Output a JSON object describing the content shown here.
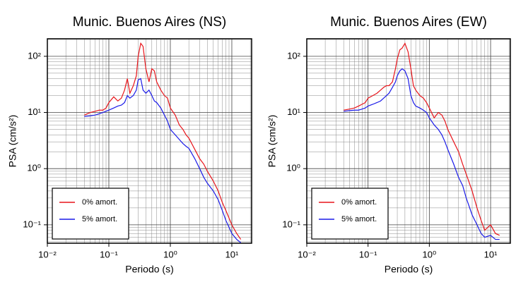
{
  "chart_data": [
    {
      "type": "line",
      "title": "Munic. Buenos Aires (NS)",
      "x_label": "Periodo (s)",
      "y_label": "PSA (cm/s²)",
      "x": [
        0.04,
        0.05,
        0.06,
        0.07,
        0.08,
        0.09,
        0.1,
        0.12,
        0.14,
        0.16,
        0.18,
        0.2,
        0.22,
        0.25,
        0.28,
        0.3,
        0.33,
        0.36,
        0.4,
        0.45,
        0.5,
        0.55,
        0.6,
        0.7,
        0.8,
        0.9,
        1.0,
        1.2,
        1.4,
        1.6,
        1.8,
        2.0,
        2.5,
        3.0,
        3.5,
        4.0,
        5.0,
        6.0,
        7.0,
        8.0,
        10,
        12,
        14
      ],
      "series": [
        {
          "name": "0% amort.",
          "color": "#e8141a",
          "values": [
            9,
            10,
            10.5,
            11,
            11,
            12,
            15,
            19,
            16,
            18,
            25,
            40,
            22,
            30,
            45,
            100,
            170,
            150,
            60,
            35,
            60,
            55,
            35,
            25,
            20,
            18,
            12,
            9,
            6,
            5,
            4,
            3.5,
            2.2,
            1.5,
            1.2,
            0.9,
            0.6,
            0.4,
            0.25,
            0.18,
            0.1,
            0.07,
            0.055
          ]
        },
        {
          "name": "5% amort.",
          "color": "#1a1ae8",
          "values": [
            8.5,
            8.7,
            9,
            9.5,
            10,
            10.5,
            11,
            12,
            13,
            13.5,
            15,
            20,
            18,
            20,
            25,
            38,
            40,
            25,
            22,
            25,
            20,
            16,
            15,
            12,
            9,
            7,
            5,
            4,
            3.3,
            2.8,
            2.5,
            2.3,
            1.5,
            1.0,
            0.7,
            0.55,
            0.4,
            0.28,
            0.18,
            0.12,
            0.07,
            0.055,
            0.048
          ]
        }
      ],
      "xscale": "log",
      "yscale": "log",
      "xlim": [
        0.01,
        21
      ],
      "ylim": [
        0.047,
        205
      ],
      "xticks": [
        {
          "value": 0.01,
          "label": "10⁻²"
        },
        {
          "value": 0.1,
          "label": "10⁻¹"
        },
        {
          "value": 1,
          "label": "10⁰"
        },
        {
          "value": 10,
          "label": "10¹"
        }
      ],
      "yticks": [
        {
          "value": 0.1,
          "label": "10⁻¹"
        },
        {
          "value": 1,
          "label": "10⁰"
        },
        {
          "value": 10,
          "label": "10¹"
        },
        {
          "value": 100,
          "label": "10²"
        }
      ],
      "grid": true,
      "legend": "lower left"
    },
    {
      "type": "line",
      "title": "Munic. Buenos Aires (EW)",
      "x_label": "Periodo (s)",
      "y_label": "PSA (cm/s²)",
      "x": [
        0.04,
        0.05,
        0.06,
        0.07,
        0.08,
        0.09,
        0.1,
        0.12,
        0.14,
        0.16,
        0.18,
        0.2,
        0.22,
        0.25,
        0.28,
        0.3,
        0.33,
        0.36,
        0.4,
        0.45,
        0.5,
        0.55,
        0.6,
        0.7,
        0.8,
        0.9,
        1.0,
        1.2,
        1.4,
        1.6,
        1.8,
        2.0,
        2.5,
        3.0,
        3.5,
        4.0,
        5.0,
        6.0,
        7.0,
        8.0,
        10,
        12,
        14
      ],
      "series": [
        {
          "name": "0% amort.",
          "color": "#e8141a",
          "values": [
            11,
            11.5,
            12,
            13,
            14,
            15,
            18,
            20,
            22,
            25,
            28,
            30,
            30,
            35,
            60,
            90,
            130,
            140,
            170,
            120,
            60,
            30,
            25,
            20,
            18,
            15,
            12,
            8,
            10,
            9,
            7,
            5,
            3,
            2,
            1.2,
            0.8,
            0.4,
            0.2,
            0.12,
            0.08,
            0.1,
            0.07,
            0.065
          ]
        },
        {
          "name": "5% amort.",
          "color": "#1a1ae8",
          "values": [
            10.5,
            10.8,
            11,
            11,
            11.5,
            12,
            13,
            14,
            15,
            16,
            18,
            20,
            22,
            28,
            35,
            45,
            55,
            60,
            55,
            40,
            20,
            15,
            13,
            12,
            11,
            10,
            8,
            6,
            5,
            4,
            3,
            2.2,
            1.2,
            0.7,
            0.5,
            0.3,
            0.15,
            0.1,
            0.07,
            0.06,
            0.065,
            0.055,
            0.055
          ]
        }
      ],
      "xscale": "log",
      "yscale": "log",
      "xlim": [
        0.01,
        21
      ],
      "ylim": [
        0.047,
        205
      ],
      "xticks": [
        {
          "value": 0.01,
          "label": "10⁻²"
        },
        {
          "value": 0.1,
          "label": "10⁻¹"
        },
        {
          "value": 1,
          "label": "10⁰"
        },
        {
          "value": 10,
          "label": "10¹"
        }
      ],
      "yticks": [
        {
          "value": 0.1,
          "label": "10⁻¹"
        },
        {
          "value": 1,
          "label": "10⁰"
        },
        {
          "value": 10,
          "label": "10¹"
        },
        {
          "value": 100,
          "label": "10²"
        }
      ],
      "grid": true,
      "legend": "lower left"
    }
  ]
}
